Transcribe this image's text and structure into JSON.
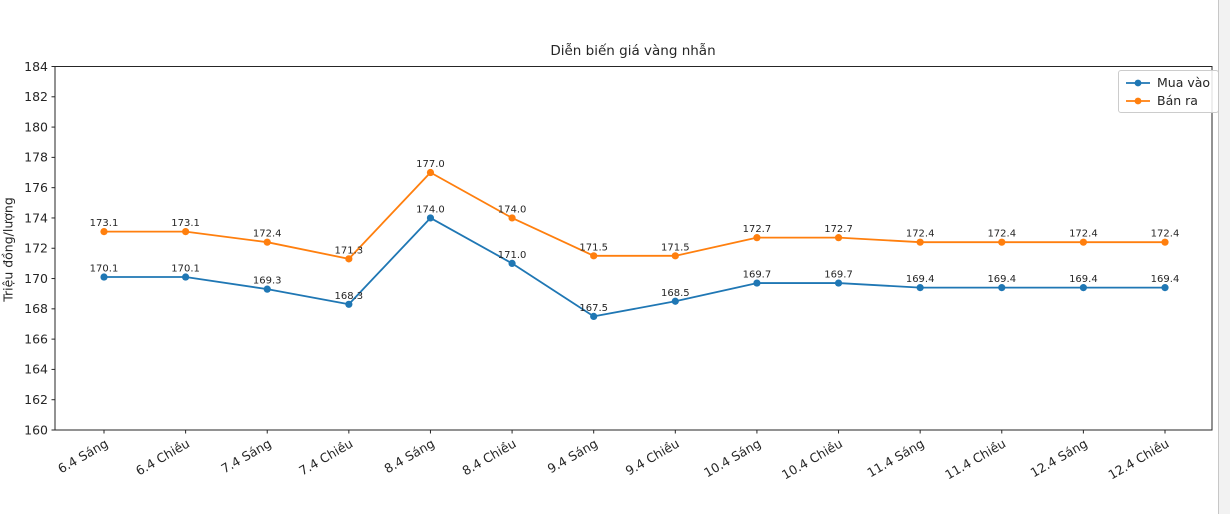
{
  "chart_data": {
    "type": "line",
    "title": "Diễn biến giá vàng nhẫn",
    "xlabel": "",
    "ylabel": "Triệu đồng/lượng",
    "categories": [
      "6.4 Sáng",
      "6.4 Chiều",
      "7.4 Sáng",
      "7.4 Chiều",
      "8.4 Sáng",
      "8.4 Chiều",
      "9.4 Sáng",
      "9.4 Chiều",
      "10.4 Sáng",
      "10.4 Chiều",
      "11.4 Sáng",
      "11.4 Chiều",
      "12.4 Sáng",
      "12.4 Chiều"
    ],
    "series": [
      {
        "name": "Mua vào",
        "color": "#1f77b4",
        "values": [
          170.1,
          170.1,
          169.3,
          168.3,
          174.0,
          171.0,
          167.5,
          168.5,
          169.7,
          169.7,
          169.4,
          169.4,
          169.4,
          169.4
        ]
      },
      {
        "name": "Bán ra",
        "color": "#ff7f0e",
        "values": [
          173.1,
          173.1,
          172.4,
          171.3,
          177.0,
          174.0,
          171.5,
          171.5,
          172.7,
          172.7,
          172.4,
          172.4,
          172.4,
          172.4
        ]
      }
    ],
    "ylim": [
      160,
      184
    ],
    "ytick_step": 2,
    "grid": false,
    "legend_position": "upper right",
    "point_labels": true,
    "label_format": "one_decimal",
    "axis_color": "#262626",
    "annotation_color": "#262626"
  }
}
